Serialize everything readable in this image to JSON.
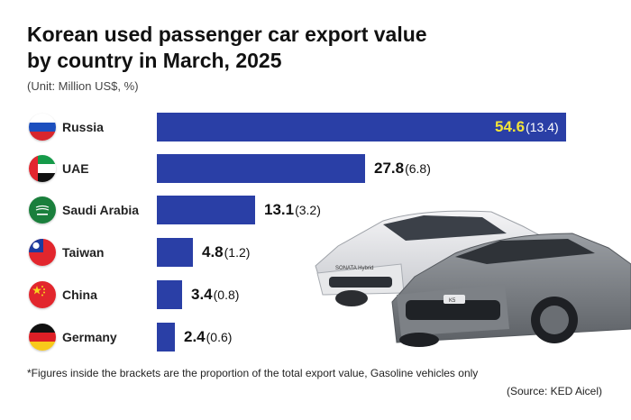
{
  "chart_data": {
    "type": "bar",
    "orientation": "horizontal",
    "title_lines": [
      "Korean used passenger car export value",
      "by country in March, 2025"
    ],
    "unit": "(Unit: Million US$, %)",
    "categories": [
      "Russia",
      "UAE",
      "Saudi Arabia",
      "Taiwan",
      "China",
      "Germany"
    ],
    "values": [
      54.6,
      27.8,
      13.1,
      4.8,
      3.4,
      2.4
    ],
    "labels": [
      "54.6",
      "27.8",
      "13.1",
      "4.8",
      "3.4",
      "2.4"
    ],
    "share_labels": [
      "(13.4)",
      "(6.8)",
      "(3.2)",
      "(1.2)",
      "(0.8)",
      "(0.6)"
    ],
    "xlim": [
      0,
      54.6
    ],
    "bar_color": "#2a3fa6",
    "highlight_value_color": "#f3e538"
  },
  "flags": [
    "russia-flag-icon",
    "uae-flag-icon",
    "saudi-arabia-flag-icon",
    "taiwan-flag-icon",
    "china-flag-icon",
    "germany-flag-icon"
  ],
  "image_labels": {
    "car_front": "SONATA Hybrid",
    "car_back": "K5"
  },
  "footnote": "*Figures inside the brackets are the proportion of the total export value, Gasoline vehicles only",
  "source": "(Source: KED Aicel)"
}
